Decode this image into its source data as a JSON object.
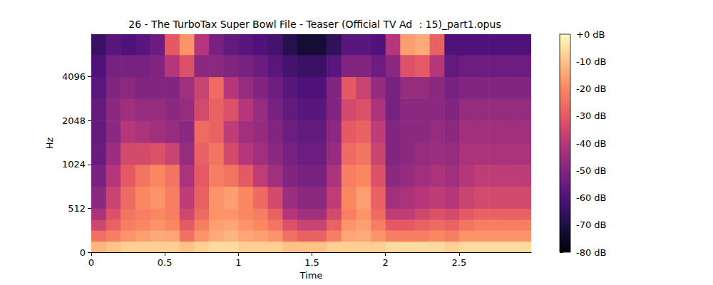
{
  "chart_data": {
    "type": "spectrogram",
    "title": "26 - The TurboTax Super Bowl File - Teaser (Official TV Ad ：15)_part1.opus",
    "x_label": "Time",
    "y_label": "Hz",
    "xlim": [
      0,
      2.99
    ],
    "xticks": [
      0,
      0.5,
      1,
      1.5,
      2,
      2.5
    ],
    "ylim": [
      0,
      8000
    ],
    "yticks": [
      0,
      512,
      1024,
      2048,
      4096
    ],
    "log": "y",
    "grid": false,
    "x_bins": [
      0,
      0.1,
      0.2,
      0.3,
      0.4,
      0.5,
      0.6,
      0.7,
      0.8,
      0.9,
      1.0,
      1.1,
      1.2,
      1.3,
      1.4,
      1.5,
      1.6,
      1.7,
      1.8,
      1.9,
      2.0,
      2.1,
      2.2,
      2.3,
      2.4,
      2.5,
      2.6,
      2.7,
      2.8,
      2.9,
      2.99
    ],
    "y_bins": [
      0,
      128,
      256,
      384,
      512,
      724,
      1024,
      1448,
      2048,
      2896,
      4096,
      5793,
      8000
    ],
    "cells": [
      [
        -12,
        -10,
        -8,
        -8,
        -8,
        -8,
        -10,
        -8,
        -6,
        -6,
        -8,
        -8,
        -8,
        -10,
        -10,
        -10,
        -8,
        -8,
        -8,
        -8,
        -6,
        -6,
        -6,
        -6,
        -8,
        -6,
        -6,
        -6,
        -6,
        -6
      ],
      [
        -25,
        -22,
        -18,
        -16,
        -14,
        -15,
        -25,
        -18,
        -14,
        -12,
        -15,
        -16,
        -18,
        -25,
        -28,
        -28,
        -22,
        -15,
        -14,
        -18,
        -22,
        -22,
        -22,
        -20,
        -22,
        -18,
        -18,
        -18,
        -18,
        -18
      ],
      [
        -35,
        -28,
        -22,
        -20,
        -18,
        -20,
        -30,
        -22,
        -16,
        -15,
        -18,
        -20,
        -24,
        -32,
        -36,
        -36,
        -28,
        -18,
        -16,
        -22,
        -30,
        -30,
        -28,
        -26,
        -28,
        -24,
        -22,
        -22,
        -22,
        -22
      ],
      [
        -42,
        -32,
        -24,
        -22,
        -20,
        -22,
        -35,
        -26,
        -18,
        -18,
        -20,
        -22,
        -28,
        -40,
        -44,
        -44,
        -34,
        -22,
        -18,
        -26,
        -38,
        -38,
        -35,
        -32,
        -34,
        -30,
        -28,
        -28,
        -28,
        -28
      ],
      [
        -48,
        -36,
        -26,
        -20,
        -18,
        -22,
        -38,
        -28,
        -18,
        -16,
        -20,
        -26,
        -34,
        -45,
        -48,
        -48,
        -38,
        -20,
        -16,
        -28,
        -44,
        -42,
        -40,
        -38,
        -40,
        -36,
        -34,
        -34,
        -34,
        -34
      ],
      [
        -52,
        -40,
        -30,
        -24,
        -20,
        -24,
        -42,
        -30,
        -22,
        -24,
        -30,
        -38,
        -44,
        -50,
        -52,
        -52,
        -42,
        -22,
        -20,
        -32,
        -48,
        -46,
        -44,
        -42,
        -44,
        -40,
        -38,
        -38,
        -38,
        -38
      ],
      [
        -55,
        -45,
        -34,
        -34,
        -32,
        -36,
        -46,
        -28,
        -24,
        -34,
        -40,
        -44,
        -48,
        -52,
        -54,
        -54,
        -46,
        -26,
        -24,
        -36,
        -50,
        -48,
        -46,
        -45,
        -46,
        -42,
        -42,
        -42,
        -42,
        -42
      ],
      [
        -56,
        -48,
        -40,
        -42,
        -44,
        -46,
        -48,
        -26,
        -28,
        -38,
        -44,
        -46,
        -50,
        -54,
        -56,
        -56,
        -48,
        -30,
        -28,
        -38,
        -50,
        -48,
        -48,
        -46,
        -48,
        -44,
        -44,
        -44,
        -44,
        -44
      ],
      [
        -56,
        -48,
        -44,
        -46,
        -46,
        -48,
        -46,
        -34,
        -28,
        -32,
        -40,
        -46,
        -52,
        -56,
        -58,
        -58,
        -50,
        -34,
        -32,
        -42,
        -52,
        -48,
        -48,
        -48,
        -50,
        -46,
        -46,
        -46,
        -46,
        -46
      ],
      [
        -58,
        -50,
        -48,
        -50,
        -50,
        -50,
        -44,
        -36,
        -26,
        -40,
        -46,
        -50,
        -54,
        -58,
        -60,
        -60,
        -50,
        -30,
        -36,
        -46,
        -52,
        -46,
        -46,
        -48,
        -52,
        -50,
        -50,
        -50,
        -50,
        -50
      ],
      [
        -60,
        -52,
        -52,
        -52,
        -50,
        -40,
        -32,
        -48,
        -48,
        -50,
        -52,
        -54,
        -58,
        -62,
        -64,
        -64,
        -58,
        -50,
        -50,
        -54,
        -48,
        -32,
        -30,
        -40,
        -56,
        -54,
        -54,
        -54,
        -54,
        -54
      ],
      [
        -64,
        -58,
        -60,
        -58,
        -54,
        -30,
        -18,
        -40,
        -52,
        -56,
        -58,
        -60,
        -62,
        -68,
        -72,
        -72,
        -66,
        -58,
        -58,
        -60,
        -40,
        -16,
        -14,
        -28,
        -60,
        -60,
        -60,
        -60,
        -60,
        -60
      ]
    ],
    "colorbar": {
      "range": [
        -80,
        0
      ],
      "ticks": [
        {
          "value": 0,
          "label": "+0 dB"
        },
        {
          "value": -10,
          "label": "-10 dB"
        },
        {
          "value": -20,
          "label": "-20 dB"
        },
        {
          "value": -30,
          "label": "-30 dB"
        },
        {
          "value": -40,
          "label": "-40 dB"
        },
        {
          "value": -50,
          "label": "-50 dB"
        },
        {
          "value": -60,
          "label": "-60 dB"
        },
        {
          "value": -70,
          "label": "-70 dB"
        },
        {
          "value": -80,
          "label": "-80 dB"
        }
      ]
    }
  }
}
